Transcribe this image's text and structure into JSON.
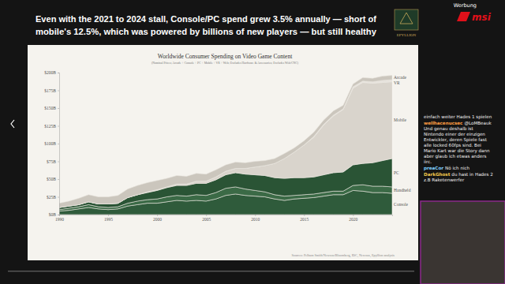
{
  "page": {
    "headline": [
      "Even with the 2021 to 2024 stall, Console/PC spend grew 3.5% annually — short of",
      "mobile's 12.5%, which was powered by billions of new players — but still healthy"
    ],
    "logo": "EPYLLION",
    "ad_label": "Werbung",
    "sponsor": "msi",
    "chat": [
      {
        "text": "einfach weiter Hades 1 spielen"
      },
      {
        "user": "wellhacenucsec",
        "text": "@LoMBeauk Und genau deshalb ist Nintendo einer der einzigen Entwickler, deren Spiele fast alle locked 60fps sind. Bei Mario Kart war die Story dann aber glaub ich etwas anders iirc."
      },
      {
        "user": "preaCor",
        "text": "Nö ich nich"
      },
      {
        "user": "DarkGhost",
        "text": "du hast in Hades 2 z.B Raketenwerfer"
      }
    ]
  },
  "chart_data": {
    "type": "area",
    "stacked": true,
    "grid": false,
    "title": "Worldwide Consumer Spending on Video Game Content",
    "subtitle": "(Nominal Prices; Arcade + Console + PC + Mobile + VR + Web; Excludes Hardware & Accessories; Excludes Web/CNC)",
    "annotations": [
      "Sources: Pelham Smith/Newzoo/Bloomberg, IDC, Newzoo, Epyllion analysis"
    ],
    "x": [
      1990,
      1991,
      1992,
      1993,
      1994,
      1995,
      1996,
      1997,
      1998,
      1999,
      2000,
      2001,
      2002,
      2003,
      2004,
      2005,
      2006,
      2007,
      2008,
      2009,
      2010,
      2011,
      2012,
      2013,
      2014,
      2015,
      2016,
      2017,
      2018,
      2019,
      2020,
      2021,
      2022,
      2023,
      2024
    ],
    "xlim": [
      1990,
      2024
    ],
    "xticks": [
      1990,
      1995,
      2000,
      2005,
      2010,
      2015,
      2020
    ],
    "ylim": [
      0,
      200
    ],
    "yticks": [
      {
        "value": 0,
        "label": "$0B"
      },
      {
        "value": 25,
        "label": "$25B"
      },
      {
        "value": 50,
        "label": "$50B"
      },
      {
        "value": 75,
        "label": "$75B"
      },
      {
        "value": 100,
        "label": "$100B"
      },
      {
        "value": 125,
        "label": "$125B"
      },
      {
        "value": 150,
        "label": "$150B"
      },
      {
        "value": 175,
        "label": "$175B"
      },
      {
        "value": 200,
        "label": "$200B"
      }
    ],
    "series": [
      {
        "name": "Console",
        "color": "#2f5b3b",
        "values": [
          5,
          6,
          8,
          10,
          8,
          7,
          8,
          12,
          14,
          16,
          16,
          18,
          20,
          19,
          20,
          19,
          22,
          27,
          29,
          27,
          26,
          25,
          22,
          20,
          22,
          23,
          24,
          26,
          28,
          28,
          34,
          33,
          31,
          31,
          30
        ]
      },
      {
        "name": "Handheld",
        "color": "#3b6a46",
        "values": [
          2,
          3,
          3,
          4,
          3,
          3,
          3,
          4,
          5,
          5,
          6,
          7,
          7,
          7,
          8,
          8,
          9,
          10,
          10,
          9,
          8,
          7,
          6,
          6,
          5,
          5,
          5,
          5,
          5,
          5,
          7,
          9,
          9,
          9,
          9
        ]
      },
      {
        "name": "PC",
        "color": "#2a5435",
        "values": [
          3,
          3,
          3,
          4,
          4,
          5,
          5,
          8,
          9,
          10,
          12,
          13,
          14,
          15,
          16,
          17,
          18,
          19,
          20,
          21,
          22,
          23,
          24,
          25,
          25,
          24,
          24,
          25,
          26,
          27,
          29,
          30,
          33,
          36,
          40
        ]
      },
      {
        "name": "Mobile",
        "color": "#d9d4cc",
        "values": [
          0,
          0,
          0,
          0,
          0,
          0,
          0,
          0,
          0,
          1,
          1,
          1,
          2,
          2,
          3,
          3,
          4,
          5,
          6,
          8,
          11,
          14,
          20,
          28,
          36,
          46,
          56,
          70,
          80,
          88,
          108,
          114,
          112,
          110,
          108
        ]
      },
      {
        "name": "VR",
        "color": "#e7e3dd",
        "values": [
          0,
          0,
          0,
          0,
          0,
          0,
          0,
          0,
          0,
          0,
          0,
          0,
          0,
          0,
          0,
          0,
          0,
          0,
          0,
          0,
          0,
          0,
          0,
          0,
          0,
          0,
          1,
          1,
          1,
          1,
          2,
          2,
          2,
          3,
          3
        ]
      },
      {
        "name": "Arcade",
        "color": "#cbc6bd",
        "values": [
          6,
          7,
          9,
          10,
          10,
          10,
          11,
          12,
          13,
          13,
          13,
          12,
          12,
          11,
          11,
          10,
          10,
          9,
          9,
          8,
          8,
          7,
          7,
          7,
          6,
          6,
          6,
          6,
          6,
          5,
          4,
          5,
          5,
          6,
          6
        ]
      }
    ]
  }
}
